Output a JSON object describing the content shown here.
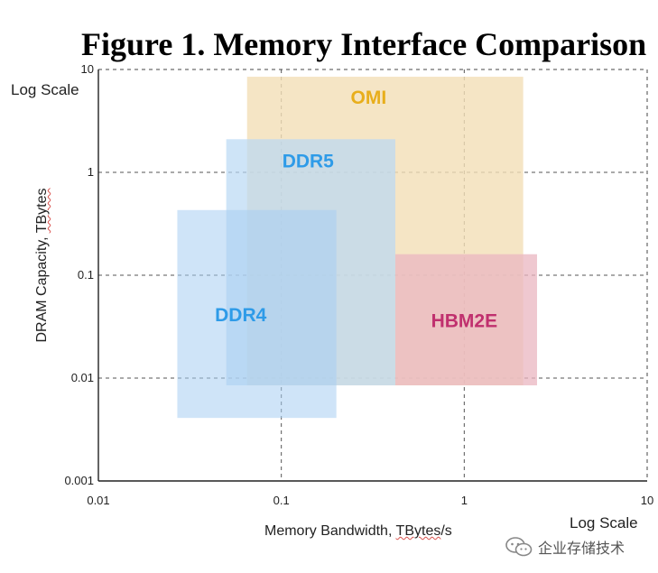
{
  "chart_data": {
    "type": "range-rectangles",
    "title": "Figure 1. Memory Interface Comparison",
    "xlabel": "Memory Bandwidth, TBytes/s",
    "ylabel": "DRAM Capacity, TBytes",
    "x_scale_note": "Log Scale",
    "y_scale_note": "Log Scale",
    "x_scale": "log",
    "y_scale": "log",
    "xlim": [
      0.01,
      10
    ],
    "ylim": [
      0.001,
      10
    ],
    "x_ticks": [
      0.01,
      0.1,
      1,
      10
    ],
    "x_tick_labels": [
      "0.01",
      "0.1",
      "1",
      "10"
    ],
    "y_ticks": [
      0.001,
      0.01,
      0.1,
      1,
      10
    ],
    "y_tick_labels": [
      "0.001",
      "0.01",
      "0.1",
      "1",
      "10"
    ],
    "grid": "dashed",
    "series": [
      {
        "name": "OMI",
        "x_range": [
          0.065,
          2.1
        ],
        "y_range": [
          0.0085,
          8.5
        ],
        "color": "#f2dfb6",
        "opacity": 0.8,
        "label_color": "#e8ae1c",
        "label_at": [
          0.3,
          5.2
        ]
      },
      {
        "name": "DDR5",
        "x_range": [
          0.05,
          0.42
        ],
        "y_range": [
          0.0085,
          2.1
        ],
        "color": "#b9d8f4",
        "opacity": 0.7,
        "label_color": "#2e9be8",
        "label_at": [
          0.14,
          1.25
        ]
      },
      {
        "name": "DDR4",
        "x_range": [
          0.027,
          0.2
        ],
        "y_range": [
          0.0041,
          0.43
        ],
        "color": "#a8cdf3",
        "opacity": 0.55,
        "label_color": "#2e9be8",
        "label_at": [
          0.06,
          0.04
        ]
      },
      {
        "name": "HBM2E",
        "x_range": [
          0.42,
          2.5
        ],
        "y_range": [
          0.0085,
          0.16
        ],
        "color": "#eab6c0",
        "opacity": 0.75,
        "label_color": "#c0306e",
        "label_at": [
          1.0,
          0.035
        ]
      }
    ]
  },
  "watermark": {
    "text": "企业存储技术",
    "icon": "wechat-icon"
  }
}
